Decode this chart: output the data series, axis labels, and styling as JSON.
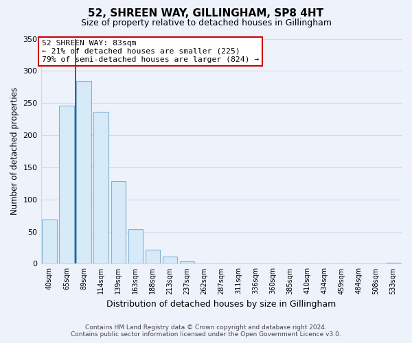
{
  "title": "52, SHREEN WAY, GILLINGHAM, SP8 4HT",
  "subtitle": "Size of property relative to detached houses in Gillingham",
  "xlabel": "Distribution of detached houses by size in Gillingham",
  "ylabel": "Number of detached properties",
  "categories": [
    "40sqm",
    "65sqm",
    "89sqm",
    "114sqm",
    "139sqm",
    "163sqm",
    "188sqm",
    "213sqm",
    "237sqm",
    "262sqm",
    "287sqm",
    "311sqm",
    "336sqm",
    "360sqm",
    "385sqm",
    "410sqm",
    "434sqm",
    "459sqm",
    "484sqm",
    "508sqm",
    "533sqm"
  ],
  "values": [
    69,
    246,
    284,
    236,
    129,
    54,
    22,
    11,
    4,
    0,
    0,
    0,
    0,
    0,
    0,
    0,
    0,
    0,
    0,
    0,
    2
  ],
  "bar_color": "#d6eaf8",
  "bar_edge_color": "#7fb3d3",
  "highlight_line_color": "#cc0000",
  "annotation_text": "52 SHREEN WAY: 83sqm\n← 21% of detached houses are smaller (225)\n79% of semi-detached houses are larger (824) →",
  "annotation_box_color": "#ffffff",
  "annotation_box_edge": "#cc0000",
  "ylim": [
    0,
    350
  ],
  "yticks": [
    0,
    50,
    100,
    150,
    200,
    250,
    300,
    350
  ],
  "footer_line1": "Contains HM Land Registry data © Crown copyright and database right 2024.",
  "footer_line2": "Contains public sector information licensed under the Open Government Licence v3.0.",
  "background_color": "#eef2fb",
  "grid_color": "#d0d8ee",
  "title_fontsize": 11,
  "subtitle_fontsize": 9
}
